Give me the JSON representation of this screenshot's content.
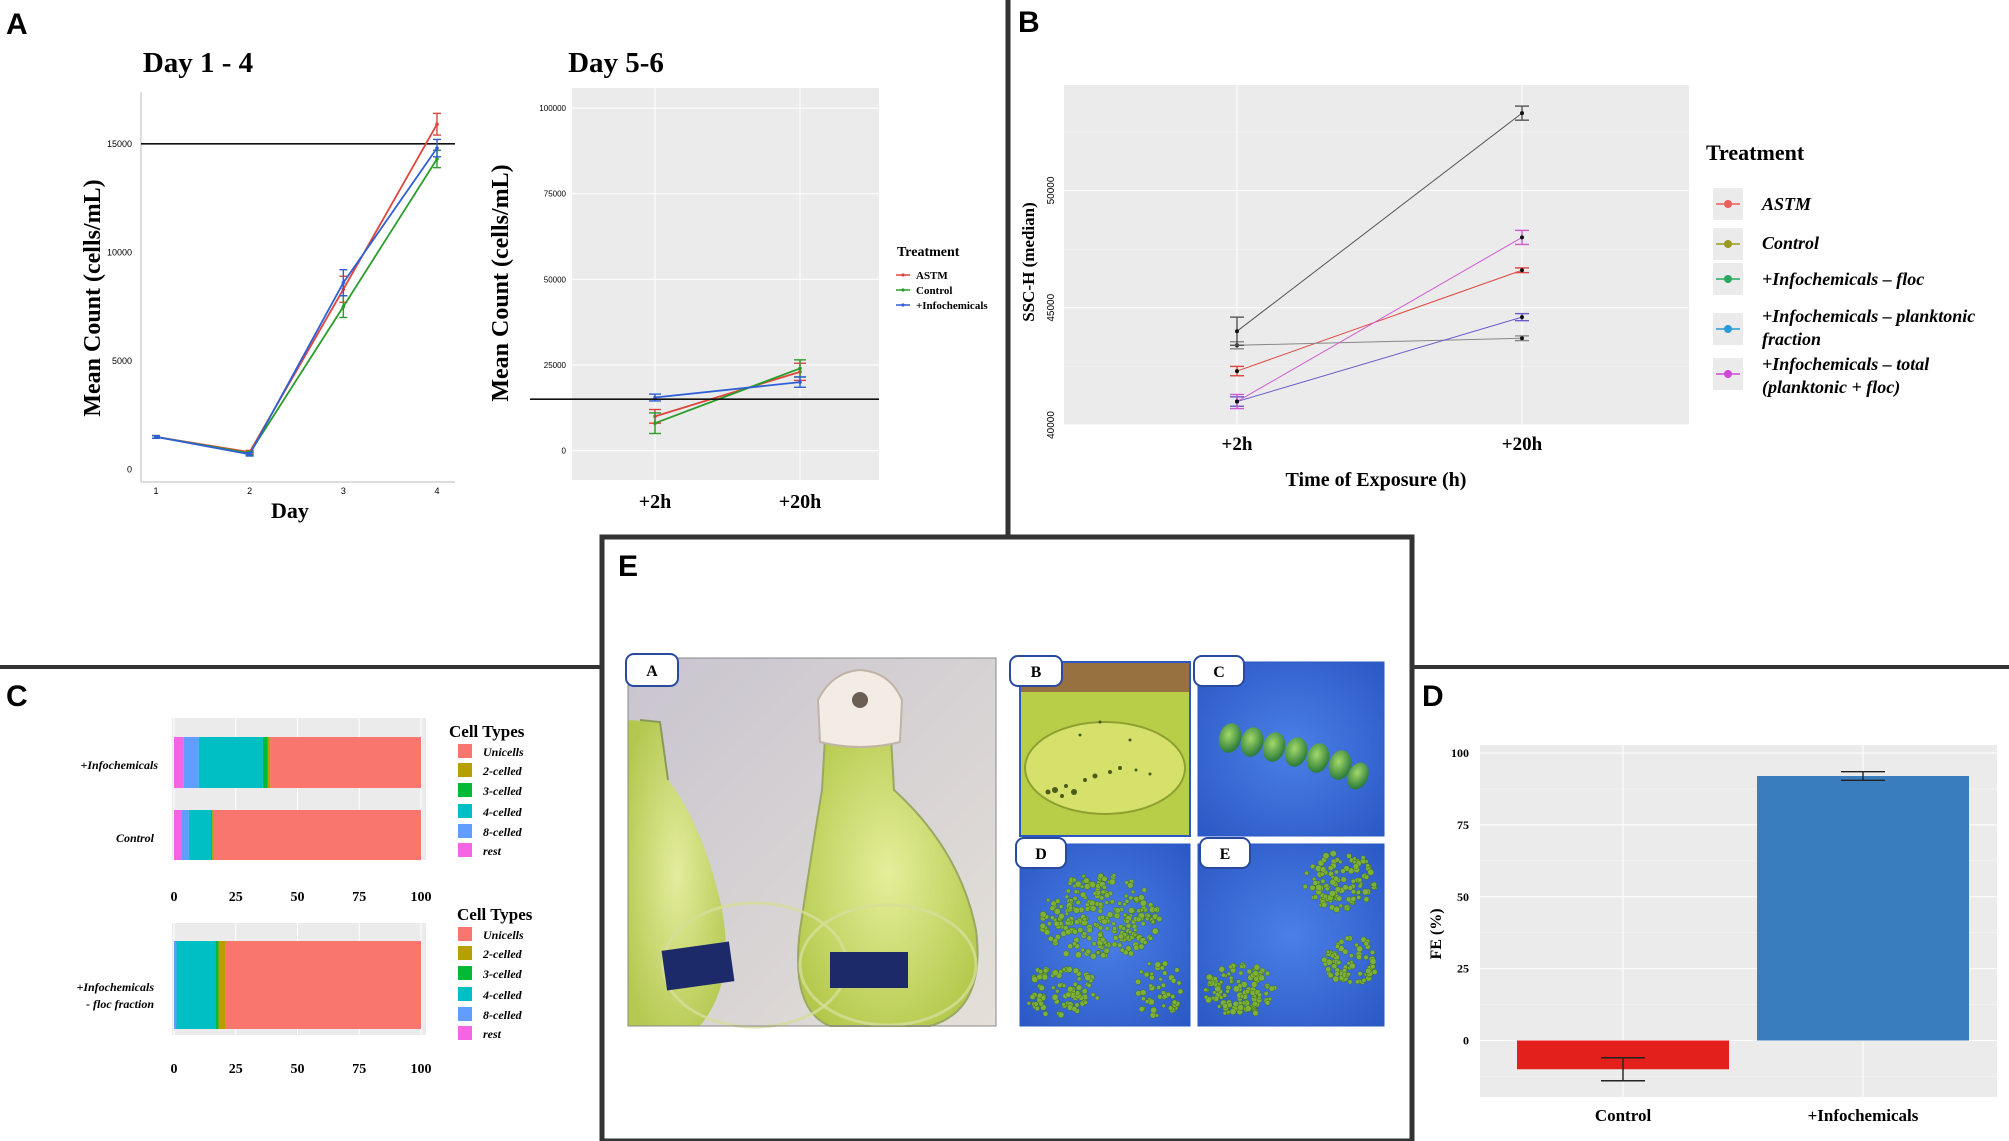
{
  "panel_letters": {
    "a": "A",
    "b": "B",
    "c": "C",
    "d": "D",
    "e": "E"
  },
  "colors": {
    "astm": "#e0463e",
    "control": "#2a9d2a",
    "info": "#2f5fd6",
    "grid_bg": "#ebebeb",
    "black": "#000000"
  },
  "chart_data": [
    {
      "id": "A1",
      "type": "line",
      "title": "Day 1 - 4",
      "xlabel": "Day",
      "ylabel": "Mean Count (cells/mL)",
      "x": [
        1,
        2,
        3,
        4
      ],
      "xticks": [
        "1",
        "2",
        "3",
        "4"
      ],
      "yticks": [
        "0",
        "5000",
        "10000",
        "15000"
      ],
      "ylim": [
        -300,
        17200
      ],
      "hline": 15000,
      "series": [
        {
          "name": "ASTM",
          "values": [
            1500,
            800,
            8300,
            15900
          ],
          "err": [
            60,
            80,
            600,
            500
          ]
        },
        {
          "name": "Control",
          "values": [
            1500,
            750,
            7500,
            14300
          ],
          "err": [
            60,
            80,
            500,
            400
          ]
        },
        {
          "name": "+Infochemicals",
          "values": [
            1500,
            700,
            8600,
            14800
          ],
          "err": [
            60,
            80,
            600,
            400
          ]
        }
      ]
    },
    {
      "id": "A2",
      "type": "line",
      "title": "Day 5-6",
      "xlabel": "",
      "ylabel": "Mean Count (cells/mL)",
      "categories": [
        "+2h",
        "+20h"
      ],
      "yticks": [
        "0",
        "25000",
        "50000",
        "75000",
        "100000"
      ],
      "ylim": [
        -8000,
        105000
      ],
      "hline": 15000,
      "legend_title": "Treatment",
      "series": [
        {
          "name": "ASTM",
          "values": [
            10000,
            23000
          ],
          "err": [
            2000,
            2500
          ]
        },
        {
          "name": "Control",
          "values": [
            8000,
            24000
          ],
          "err": [
            3000,
            2500
          ]
        },
        {
          "name": "+Infochemicals",
          "values": [
            15500,
            20000
          ],
          "err": [
            1000,
            1500
          ]
        }
      ]
    },
    {
      "id": "B",
      "type": "line",
      "title": "",
      "xlabel": "Time of Exposure (h)",
      "ylabel": "SSC-H (median)",
      "categories": [
        "+2h",
        "+20h"
      ],
      "yticks": [
        "40000",
        "45000",
        "50000"
      ],
      "ylim": [
        40000,
        54500
      ],
      "legend_title": "Treatment",
      "series": [
        {
          "name": "ASTM",
          "values": [
            42300,
            46600
          ],
          "err": [
            200,
            100
          ],
          "color": "#e0463e"
        },
        {
          "name": "Control",
          "values": [
            43400,
            43700
          ],
          "err": [
            150,
            100
          ],
          "color": "#888888"
        },
        {
          "name": "+Infochemicals – floc",
          "values": [
            44000,
            53300
          ],
          "err": [
            600,
            300
          ],
          "color": "#555555"
        },
        {
          "name": "+Infochemicals – planktonic fraction",
          "values": [
            41000,
            44600
          ],
          "err": [
            200,
            150
          ],
          "color": "#6a5acd"
        },
        {
          "name": "+Infochemicals – total (planktonic + floc)",
          "values": [
            41000,
            48000
          ],
          "err": [
            300,
            300
          ],
          "color": "#d05ad0"
        }
      ],
      "legend_labels": [
        {
          "l1": "ASTM",
          "l2": "",
          "color": "#e9605a"
        },
        {
          "l1": "Control",
          "l2": "",
          "color": "#9a9a20"
        },
        {
          "l1": "+Infochemicals – floc",
          "l2": "",
          "color": "#2aa860"
        },
        {
          "l1": "+Infochemicals – planktonic",
          "l2": "fraction",
          "color": "#2b9ad8"
        },
        {
          "l1": "+Infochemicals – total",
          "l2": "(planktonic + floc)",
          "color": "#d048d8"
        }
      ]
    },
    {
      "id": "C1",
      "type": "bar",
      "orientation": "horizontal",
      "stacked": true,
      "categories": [
        "+Infochemicals",
        "Control"
      ],
      "xticks": [
        "0",
        "25",
        "50",
        "75",
        "100"
      ],
      "legend_title": "Cell Types",
      "series": [
        {
          "name": "Unicells",
          "values": [
            61,
            84
          ],
          "color": "#f8766d"
        },
        {
          "name": "2-celled",
          "values": [
            1,
            0.5
          ],
          "color": "#b79f00"
        },
        {
          "name": "3-celled",
          "values": [
            2,
            0.5
          ],
          "color": "#00ba38"
        },
        {
          "name": "4-celled",
          "values": [
            26,
            9
          ],
          "color": "#00bfc4"
        },
        {
          "name": "8-celled",
          "values": [
            6,
            3
          ],
          "color": "#619cff"
        },
        {
          "name": "rest",
          "values": [
            4,
            3
          ],
          "color": "#f564e3"
        }
      ]
    },
    {
      "id": "C2",
      "type": "bar",
      "orientation": "horizontal",
      "stacked": true,
      "categories": [
        "+Infochemicals - floc fraction"
      ],
      "category_lines": [
        [
          "+Infochemicals",
          "- floc fraction"
        ]
      ],
      "xticks": [
        "0",
        "25",
        "50",
        "75",
        "100"
      ],
      "legend_title": "Cell Types",
      "series": [
        {
          "name": "Unicells",
          "values": [
            79
          ],
          "color": "#f8766d"
        },
        {
          "name": "2-celled",
          "values": [
            3
          ],
          "color": "#b79f00"
        },
        {
          "name": "3-celled",
          "values": [
            1
          ],
          "color": "#00ba38"
        },
        {
          "name": "4-celled",
          "values": [
            16
          ],
          "color": "#00bfc4"
        },
        {
          "name": "8-celled",
          "values": [
            1
          ],
          "color": "#619cff"
        },
        {
          "name": "rest",
          "values": [
            0
          ],
          "color": "#f564e3"
        }
      ]
    },
    {
      "id": "D",
      "type": "bar",
      "categories": [
        "Control",
        "+Infochemicals"
      ],
      "values": [
        -10,
        92
      ],
      "err": [
        4,
        1.5
      ],
      "colors": [
        "#e3201c",
        "#3a7dbf"
      ],
      "ylabel": "FE (%)",
      "yticks": [
        "0",
        "25",
        "50",
        "75",
        "100"
      ],
      "ylim": [
        -20,
        100
      ]
    }
  ],
  "photos": {
    "a": "A",
    "b": "B",
    "c": "C",
    "d": "D",
    "e": "E"
  }
}
